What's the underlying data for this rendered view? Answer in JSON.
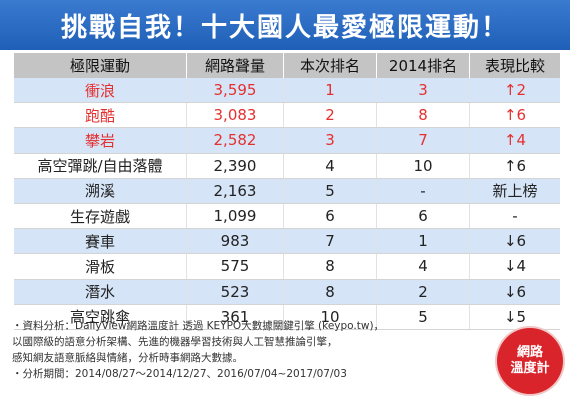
{
  "title": "挑戰自我！十大國人最愛極限運動！",
  "columns": [
    "極限運動",
    "網路聲量",
    "本次排名",
    "2014排名",
    "表現比較"
  ],
  "chart_data": {
    "type": "table",
    "rows": [
      {
        "sport": "衝浪",
        "volume": "3,595",
        "rank": "1",
        "rank2014": "3",
        "change": "↑2",
        "dir": "up"
      },
      {
        "sport": "跑酷",
        "volume": "3,083",
        "rank": "2",
        "rank2014": "8",
        "change": "↑6",
        "dir": "up"
      },
      {
        "sport": "攀岩",
        "volume": "2,582",
        "rank": "3",
        "rank2014": "7",
        "change": "↑4",
        "dir": "up"
      },
      {
        "sport": "高空彈跳/自由落體",
        "volume": "2,390",
        "rank": "4",
        "rank2014": "10",
        "change": "↑6",
        "dir": "up"
      },
      {
        "sport": "溯溪",
        "volume": "2,163",
        "rank": "5",
        "rank2014": "-",
        "change": "新上榜",
        "dir": "new"
      },
      {
        "sport": "生存遊戲",
        "volume": "1,099",
        "rank": "6",
        "rank2014": "6",
        "change": "-",
        "dir": "same"
      },
      {
        "sport": "賽車",
        "volume": "983",
        "rank": "7",
        "rank2014": "1",
        "change": "↓6",
        "dir": "down"
      },
      {
        "sport": "滑板",
        "volume": "575",
        "rank": "8",
        "rank2014": "4",
        "change": "↓4",
        "dir": "down"
      },
      {
        "sport": "潛水",
        "volume": "523",
        "rank": "8",
        "rank2014": "2",
        "change": "↓6",
        "dir": "down"
      },
      {
        "sport": "高空跳傘",
        "volume": "361",
        "rank": "10",
        "rank2014": "5",
        "change": "↓5",
        "dir": "down"
      }
    ]
  },
  "colors": {
    "up": "#e53030",
    "down": "#2e9a2e",
    "header": "#1f5fb7",
    "stripe": "#d6e4f7"
  },
  "footer": {
    "line1": "・資料分析：DailyView網路溫度計 透過 KEYPO大數據關鍵引擎 (keypo.tw)，",
    "line2": "以國際級的語意分析架構、先進的機器學習技術與人工智慧推論引擎，",
    "line3": "感知網友語意脈絡與情緒，分析時事網路大數據。",
    "line4": "・分析期間：2014/08/27～2014/12/27、2016/07/04~2017/07/03"
  },
  "logo": {
    "line1": "網路",
    "line2": "溫度計"
  }
}
